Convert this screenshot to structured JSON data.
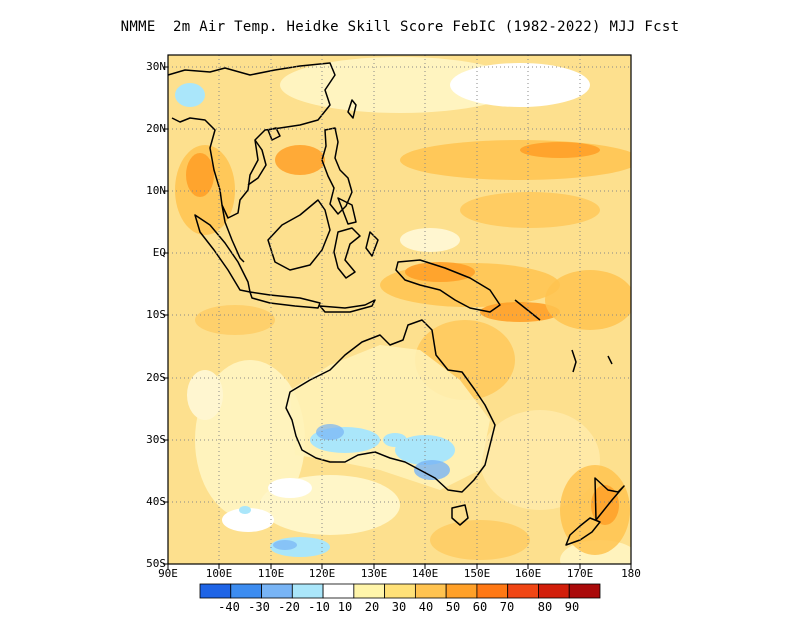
{
  "title": "NMME  2m Air Temp. Heidke Skill Score FebIC (1982-2022) MJJ Fcst",
  "map": {
    "lat_labels": [
      "30N",
      "20N",
      "10N",
      "EQ",
      "10S",
      "20S",
      "30S",
      "40S",
      "50S"
    ],
    "lon_labels": [
      "90E",
      "100E",
      "110E",
      "120E",
      "130E",
      "140E",
      "150E",
      "160E",
      "170E",
      "180"
    ],
    "lat_range": [
      -50,
      31
    ],
    "lon_range": [
      90,
      180
    ]
  },
  "colorbar": {
    "labels": [
      "-40",
      "-30",
      "-20",
      "-10",
      "10",
      "20",
      "30",
      "40",
      "50",
      "60",
      "70",
      "80",
      "90"
    ],
    "colors": [
      "#1e64e6",
      "#3c8cf0",
      "#78b4f5",
      "#aae6fa",
      "#ffffff",
      "#fff5aa",
      "#ffe178",
      "#ffc350",
      "#ffa028",
      "#ff7814",
      "#f04614",
      "#d21e0a",
      "#aa0a0a"
    ]
  },
  "legend_colors": {
    "ocean_base": "#fde08e",
    "land_base": "#fde7a0",
    "coastline": "#000000",
    "grid": "#999999"
  }
}
